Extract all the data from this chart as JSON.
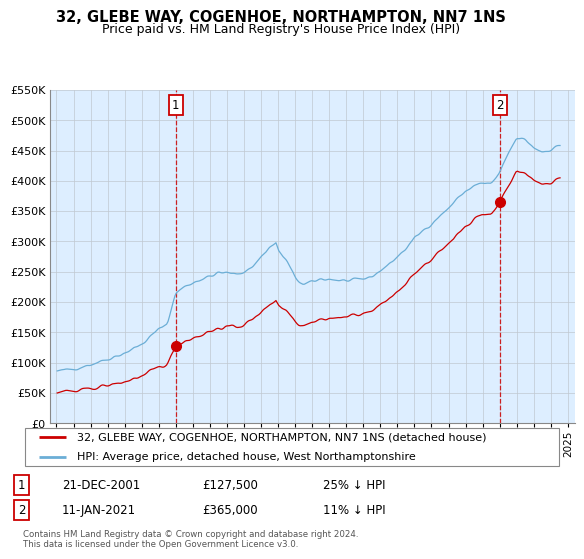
{
  "title": "32, GLEBE WAY, COGENHOE, NORTHAMPTON, NN7 1NS",
  "subtitle": "Price paid vs. HM Land Registry's House Price Index (HPI)",
  "legend_label1": "32, GLEBE WAY, COGENHOE, NORTHAMPTON, NN7 1NS (detached house)",
  "legend_label2": "HPI: Average price, detached house, West Northamptonshire",
  "sale1_date": "21-DEC-2001",
  "sale1_price": "£127,500",
  "sale1_hpi": "25% ↓ HPI",
  "sale2_date": "11-JAN-2021",
  "sale2_price": "£365,000",
  "sale2_hpi": "11% ↓ HPI",
  "footer": "Contains HM Land Registry data © Crown copyright and database right 2024.\nThis data is licensed under the Open Government Licence v3.0.",
  "hpi_color": "#6baed6",
  "price_color": "#cc0000",
  "vline_color": "#cc0000",
  "bg_color": "#ddeeff",
  "ylim": [
    0,
    550000
  ],
  "yticks": [
    0,
    50000,
    100000,
    150000,
    200000,
    250000,
    300000,
    350000,
    400000,
    450000,
    500000,
    550000
  ],
  "sale1_year": 2002.0,
  "sale1_value": 127500,
  "sale2_year": 2021.03,
  "sale2_value": 365000,
  "xlim_left": 1994.6,
  "xlim_right": 2025.4
}
